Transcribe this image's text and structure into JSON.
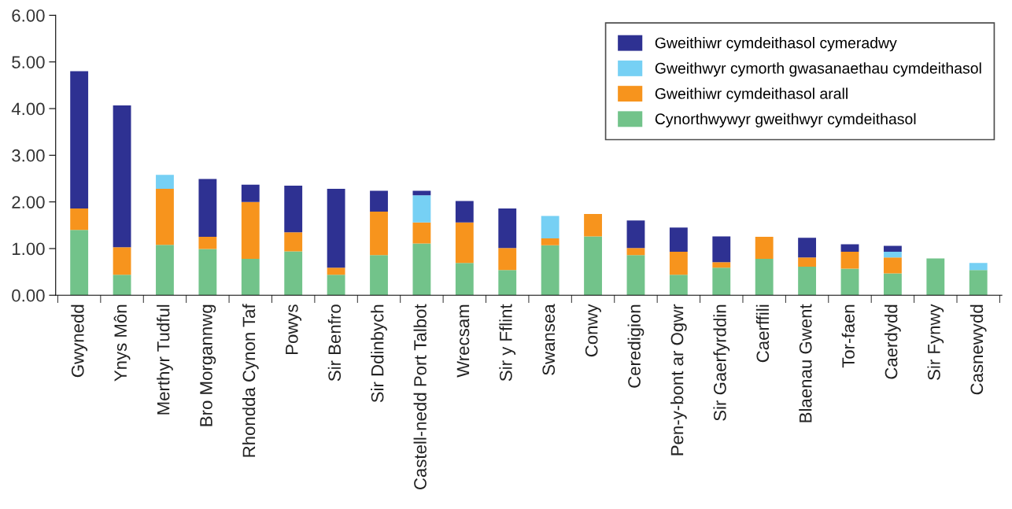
{
  "chart_data": {
    "type": "bar",
    "stacked": true,
    "categories": [
      "Gwynedd",
      "Ynys Môn",
      "Merthyr Tudful",
      "Bro Morgannwg",
      "Rhondda Cynon Taf",
      "Powys",
      "Sir Benfro",
      "Sir Ddinbych",
      "Castell-nedd Port Talbot",
      "Wrecsam",
      "Sir y Fflint",
      "Swansea",
      "Conwy",
      "Ceredigion",
      "Pen-y-bont ar Ogwr",
      "Sir Gaerfyrddin",
      "Caerffili",
      "Blaenau Gwent",
      "Tor-faen",
      "Caerdydd",
      "Sir Fynwy",
      "Casnewydd"
    ],
    "series": [
      {
        "name": "Cynorthwywyr gweithwyr cymdeithasol",
        "color": "#72c38a",
        "values": [
          1.4,
          0.44,
          1.08,
          0.99,
          0.78,
          0.94,
          0.44,
          0.86,
          1.11,
          0.69,
          0.54,
          1.07,
          1.26,
          0.86,
          0.44,
          0.59,
          0.78,
          0.61,
          0.57,
          0.47,
          0.79,
          0.54
        ]
      },
      {
        "name": "Gweithiwr cymdeithasol arall",
        "color": "#f7941d",
        "values": [
          0.46,
          0.59,
          1.2,
          0.26,
          1.22,
          0.41,
          0.15,
          0.93,
          0.45,
          0.87,
          0.47,
          0.15,
          0.48,
          0.15,
          0.49,
          0.12,
          0.47,
          0.2,
          0.36,
          0.34,
          null,
          null
        ]
      },
      {
        "name": "Gweithwyr cymorth gwasanaethau cymdeithasol",
        "color": "#76d0f4",
        "values": [
          null,
          null,
          0.3,
          null,
          null,
          null,
          null,
          null,
          0.58,
          null,
          null,
          0.48,
          null,
          null,
          null,
          null,
          null,
          null,
          null,
          0.12,
          null,
          0.15
        ]
      },
      {
        "name": "Gweithiwr cymdeithasol cymeradwy",
        "color": "#2e3192",
        "values": [
          2.94,
          3.04,
          null,
          1.24,
          0.37,
          1.0,
          1.69,
          0.45,
          0.1,
          0.46,
          0.85,
          null,
          null,
          0.59,
          0.52,
          0.55,
          null,
          0.42,
          0.16,
          0.13,
          null,
          null
        ]
      }
    ],
    "ylim": [
      0,
      6
    ],
    "yticks": [
      {
        "value": 0,
        "label": "0.00"
      },
      {
        "value": 1,
        "label": "1.00"
      },
      {
        "value": 2,
        "label": "2.00"
      },
      {
        "value": 3,
        "label": "3.00"
      },
      {
        "value": 4,
        "label": "4.00"
      },
      {
        "value": 5,
        "label": "5.00"
      },
      {
        "value": 6,
        "label": "6.00"
      }
    ],
    "grid": false,
    "legend": "top right"
  }
}
